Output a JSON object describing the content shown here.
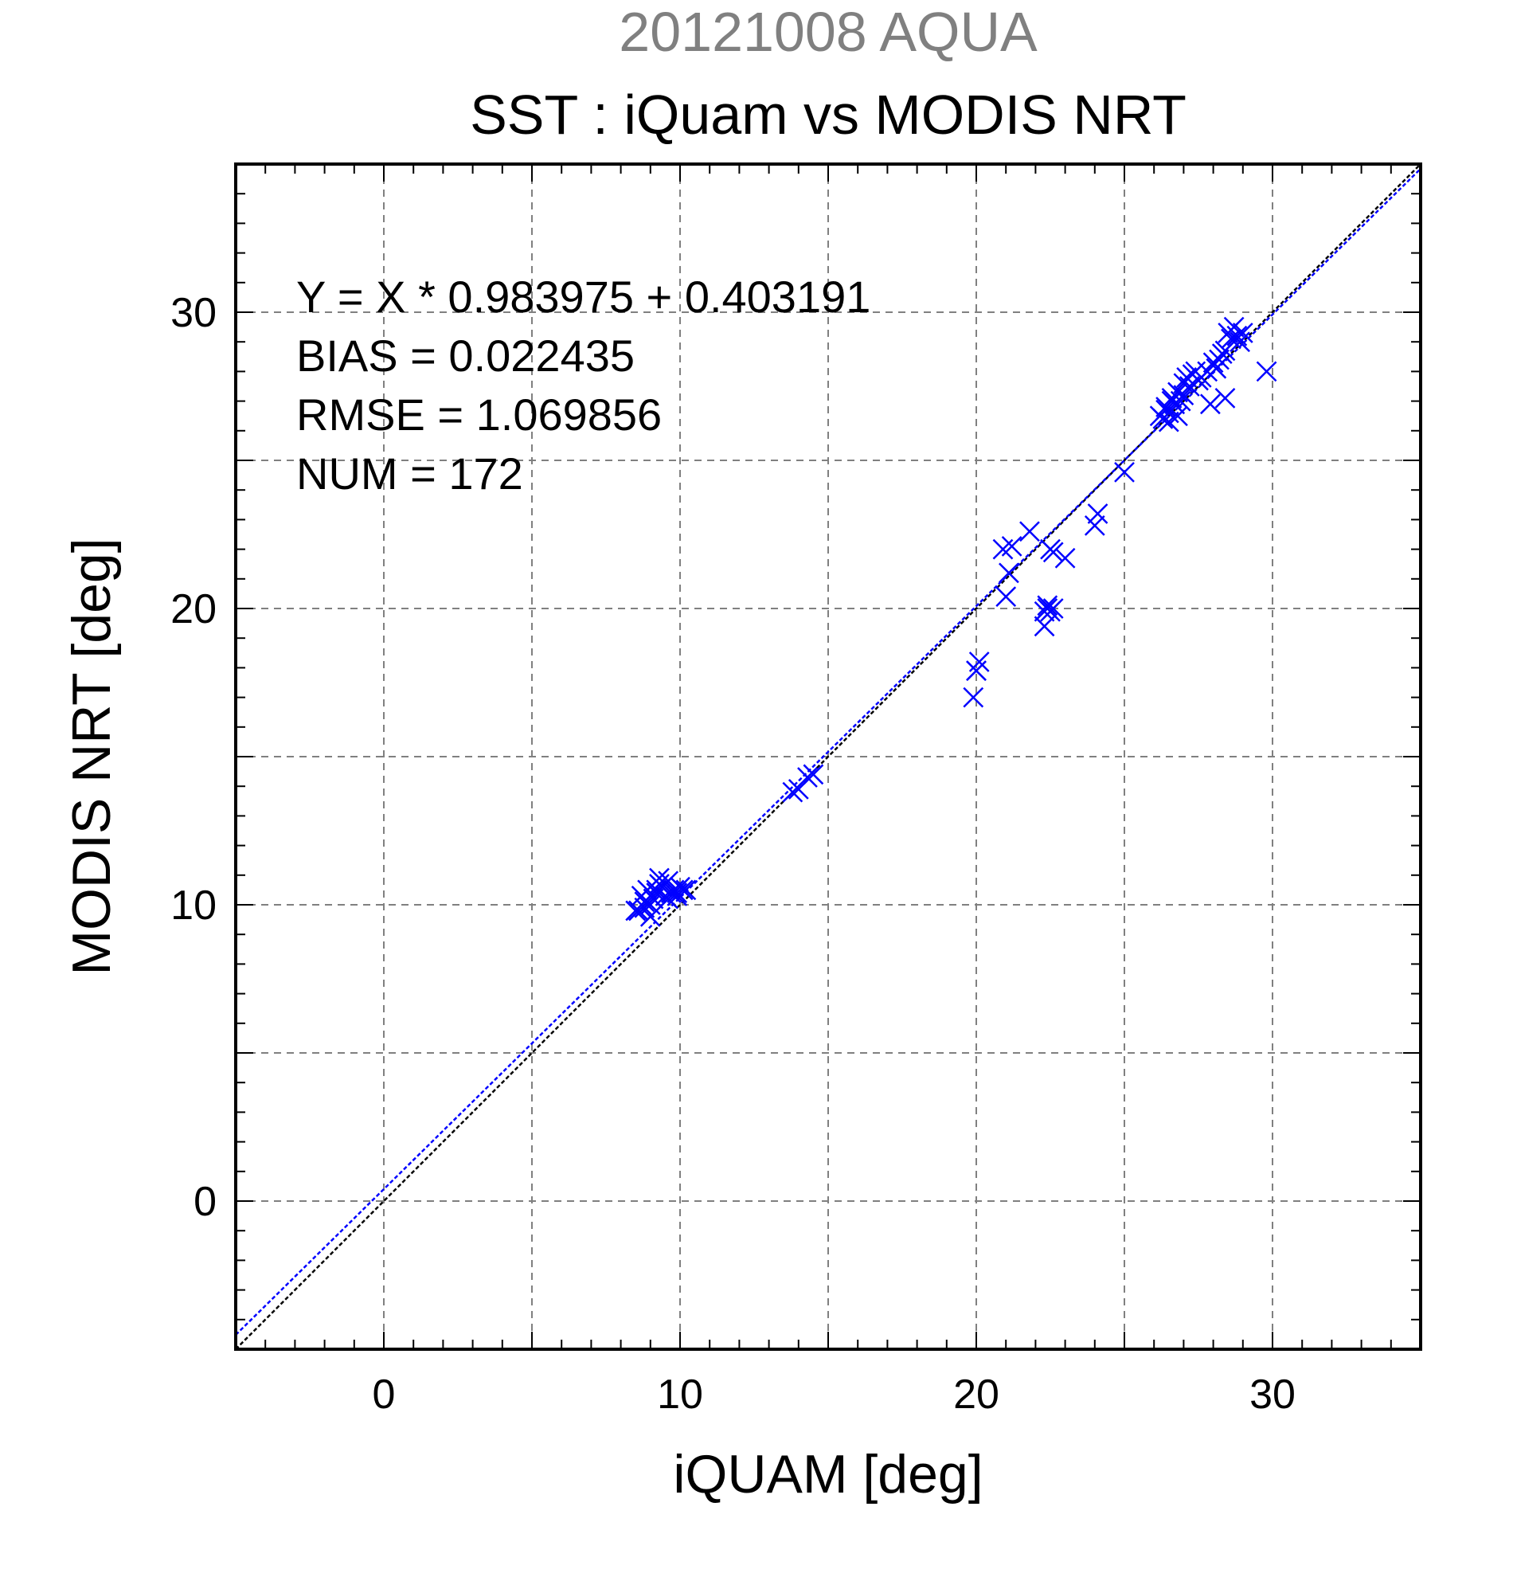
{
  "chart_data": {
    "type": "scatter",
    "suptitle": "20121008 AQUA",
    "title": "SST : iQuam vs MODIS NRT",
    "xlabel": "iQUAM [deg]",
    "ylabel": "MODIS NRT [deg]",
    "xlim": [
      -5,
      35
    ],
    "ylim": [
      -5,
      35
    ],
    "xticks": [
      0,
      10,
      20,
      30
    ],
    "yticks": [
      0,
      10,
      20,
      30
    ],
    "tick_labels": {
      "x": [
        "0",
        "10",
        "20",
        "30"
      ],
      "y": [
        "0",
        "10",
        "20",
        "30"
      ]
    },
    "grid": true,
    "colors": {
      "points": "#0000ff",
      "fit_line": "#0000ff",
      "identity_line": "#000000",
      "suptitle": "#808080",
      "grid": "#808080"
    },
    "stats": {
      "equation": "Y = X * 0.983975 + 0.403191",
      "bias": "BIAS = 0.022435",
      "rmse": "RMSE = 1.069856",
      "num": "NUM = 172"
    },
    "fit": {
      "slope": 0.983975,
      "intercept": 0.403191
    },
    "series": [
      {
        "marker": "x",
        "x": [
          8.5,
          8.7,
          8.8,
          8.9,
          9.0,
          9.1,
          9.2,
          9.3,
          9.4,
          9.5,
          9.6,
          9.7,
          9.8,
          9.9,
          10.0,
          10.1,
          10.2,
          8.6,
          9.0,
          9.3,
          9.6,
          9.9,
          8.8,
          9.2,
          13.8,
          14.0,
          14.3,
          14.5,
          19.9,
          20.0,
          20.1,
          20.0,
          21.0,
          21.1,
          21.2,
          20.9,
          21.8,
          22.5,
          22.6,
          23.0,
          22.4,
          22.3,
          22.5,
          22.6,
          22.3,
          22.4,
          24.0,
          24.1,
          25.0,
          26.2,
          26.3,
          26.4,
          26.5,
          26.6,
          26.7,
          26.8,
          26.9,
          27.0,
          27.1,
          27.2,
          27.3,
          27.5,
          27.6,
          27.8,
          28.0,
          28.1,
          28.2,
          28.3,
          28.4,
          28.5,
          28.6,
          28.7,
          28.8,
          28.9,
          29.0,
          27.9,
          28.4,
          29.8,
          26.5,
          26.8,
          27.0,
          26.4,
          26.6,
          27.4
        ],
        "y": [
          9.8,
          10.3,
          9.9,
          10.5,
          9.6,
          10.2,
          10.4,
          10.9,
          10.6,
          10.3,
          10.8,
          10.4,
          10.5,
          10.3,
          10.6,
          10.5,
          10.5,
          9.8,
          10.0,
          10.7,
          10.2,
          10.4,
          10.1,
          10.5,
          13.8,
          13.9,
          14.3,
          14.4,
          17.0,
          17.9,
          18.2,
          17.9,
          20.4,
          21.2,
          22.1,
          22.0,
          22.6,
          22.0,
          21.9,
          21.7,
          20.0,
          19.4,
          19.9,
          20.0,
          19.9,
          20.1,
          22.8,
          23.2,
          24.6,
          26.5,
          26.4,
          26.8,
          26.6,
          27.1,
          26.9,
          27.3,
          27.0,
          27.6,
          27.8,
          27.5,
          27.9,
          27.7,
          27.8,
          28.0,
          28.3,
          28.1,
          28.4,
          28.6,
          28.7,
          29.3,
          29.1,
          29.5,
          29.2,
          29.0,
          29.3,
          26.9,
          27.1,
          28.0,
          26.3,
          26.5,
          27.2,
          26.7,
          27.0,
          28.0
        ]
      }
    ]
  }
}
